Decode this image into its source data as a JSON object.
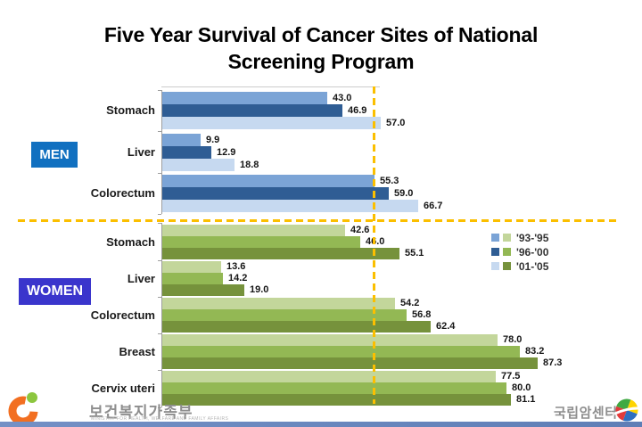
{
  "title": "Five Year Survival of Cancer Sites of National Screening Program",
  "colors": {
    "divider": "#FBBF00",
    "axis": "#9E9E9E",
    "men_badge": "#1170C0",
    "women_badge": "#3A35CC",
    "bottom_strip": "#5F7EB6"
  },
  "groups": {
    "men_label": "MEN",
    "women_label": "WOMEN"
  },
  "legend": {
    "entries": [
      {
        "label": "'93-'95",
        "men_color": "#7BA4D6",
        "women_color": "#C3D69B"
      },
      {
        "label": "'96-'00",
        "men_color": "#2F5D94",
        "women_color": "#93B854"
      },
      {
        "label": "'01-'05",
        "men_color": "#C6D9F0",
        "women_color": "#76923C"
      }
    ]
  },
  "chart_data": [
    {
      "type": "bar",
      "orientation": "horizontal",
      "group": "MEN",
      "series": [
        "'93-'95",
        "'96-'00",
        "'01-'05"
      ],
      "series_colors": [
        "#7BA4D6",
        "#2F5D94",
        "#C6D9F0"
      ],
      "categories": [
        "Stomach",
        "Liver",
        "Colorectum"
      ],
      "values": [
        [
          43.0,
          46.9,
          57.0
        ],
        [
          9.9,
          12.9,
          18.8
        ],
        [
          55.3,
          59.0,
          66.7
        ]
      ],
      "data_labels": true,
      "legend_position": "right"
    },
    {
      "type": "bar",
      "orientation": "horizontal",
      "group": "WOMEN",
      "series": [
        "'93-'95",
        "'96-'00",
        "'01-'05"
      ],
      "series_colors": [
        "#C3D69B",
        "#93B854",
        "#76923C"
      ],
      "categories": [
        "Stomach",
        "Liver",
        "Colorectum",
        "Breast",
        "Cervix uteri"
      ],
      "values": [
        [
          42.6,
          46.0,
          55.1
        ],
        [
          13.6,
          14.2,
          19.0
        ],
        [
          54.2,
          56.8,
          62.4
        ],
        [
          78.0,
          83.2,
          87.3
        ],
        [
          77.5,
          80.0,
          81.1
        ]
      ],
      "data_labels": true,
      "legend_position": "right"
    }
  ],
  "footer": {
    "left_org": "보건복지가족부",
    "left_org_caption": "MINISTRY FOR HEALTH, WELFARE AND FAMILY AFFAIRS",
    "right_org": "국립암센터"
  }
}
